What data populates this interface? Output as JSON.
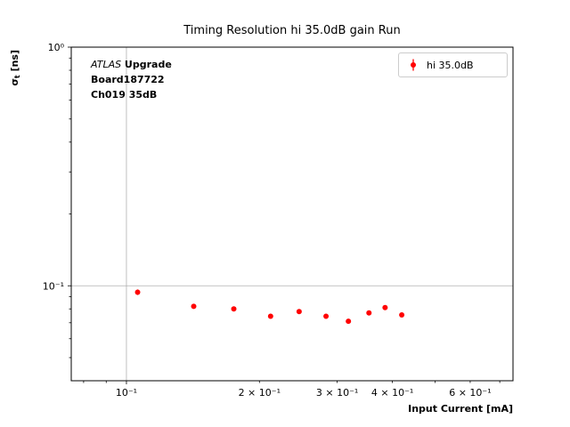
{
  "annotation": {
    "experiment": "ATLAS",
    "suffix": " Upgrade",
    "board": "Board187722",
    "channel": "Ch019 35dB"
  },
  "legend": {
    "label": "hi 35.0dB",
    "marker_color": "#ff0000"
  },
  "ylabel_parts": {
    "sigma": "σ",
    "sub": "t",
    "units": " [ns]"
  },
  "chart_data": {
    "type": "scatter",
    "title": "Timing Resolution hi 35.0dB gain Run",
    "xlabel": "Input Current [mA]",
    "ylabel": "σ_t [ns]",
    "x_scale": "log",
    "y_scale": "log",
    "xlim": [
      0.075,
      0.75
    ],
    "ylim": [
      0.04,
      1.0
    ],
    "grid": true,
    "grid_color": "#b0b0b0",
    "legend_position": "upper right",
    "series": [
      {
        "name": "hi 35.0dB",
        "color": "#ff0000",
        "marker": "circle",
        "x": [
          0.106,
          0.142,
          0.175,
          0.212,
          0.246,
          0.283,
          0.318,
          0.354,
          0.385,
          0.42
        ],
        "y": [
          0.094,
          0.082,
          0.08,
          0.0745,
          0.078,
          0.0745,
          0.071,
          0.077,
          0.081,
          0.0755
        ],
        "yerr": [
          0.0025,
          0.001,
          0.001,
          0.001,
          0.001,
          0.001,
          0.001,
          0.0012,
          0.0018,
          0.0012
        ]
      }
    ],
    "x_ticks": [
      {
        "v": 0.08,
        "label": "",
        "major": false
      },
      {
        "v": 0.09,
        "label": "",
        "major": false
      },
      {
        "v": 0.1,
        "label": "10⁻¹",
        "major": true
      },
      {
        "v": 0.2,
        "label": "2 × 10⁻¹",
        "major": false
      },
      {
        "v": 0.3,
        "label": "3 × 10⁻¹",
        "major": false
      },
      {
        "v": 0.4,
        "label": "4 × 10⁻¹",
        "major": false
      },
      {
        "v": 0.5,
        "label": "",
        "major": false
      },
      {
        "v": 0.6,
        "label": "6 × 10⁻¹",
        "major": false
      },
      {
        "v": 0.7,
        "label": "",
        "major": false
      }
    ],
    "y_ticks": [
      {
        "v": 1.0,
        "label": "10⁰",
        "major": true
      },
      {
        "v": 0.9,
        "label": "",
        "major": false
      },
      {
        "v": 0.8,
        "label": "",
        "major": false
      },
      {
        "v": 0.7,
        "label": "",
        "major": false
      },
      {
        "v": 0.6,
        "label": "",
        "major": false
      },
      {
        "v": 0.5,
        "label": "",
        "major": false
      },
      {
        "v": 0.4,
        "label": "",
        "major": false
      },
      {
        "v": 0.3,
        "label": "",
        "major": false
      },
      {
        "v": 0.2,
        "label": "",
        "major": false
      },
      {
        "v": 0.1,
        "label": "10⁻¹",
        "major": true
      },
      {
        "v": 0.09,
        "label": "",
        "major": false
      },
      {
        "v": 0.08,
        "label": "",
        "major": false
      },
      {
        "v": 0.07,
        "label": "",
        "major": false
      },
      {
        "v": 0.06,
        "label": "",
        "major": false
      },
      {
        "v": 0.05,
        "label": "",
        "major": false
      }
    ]
  }
}
